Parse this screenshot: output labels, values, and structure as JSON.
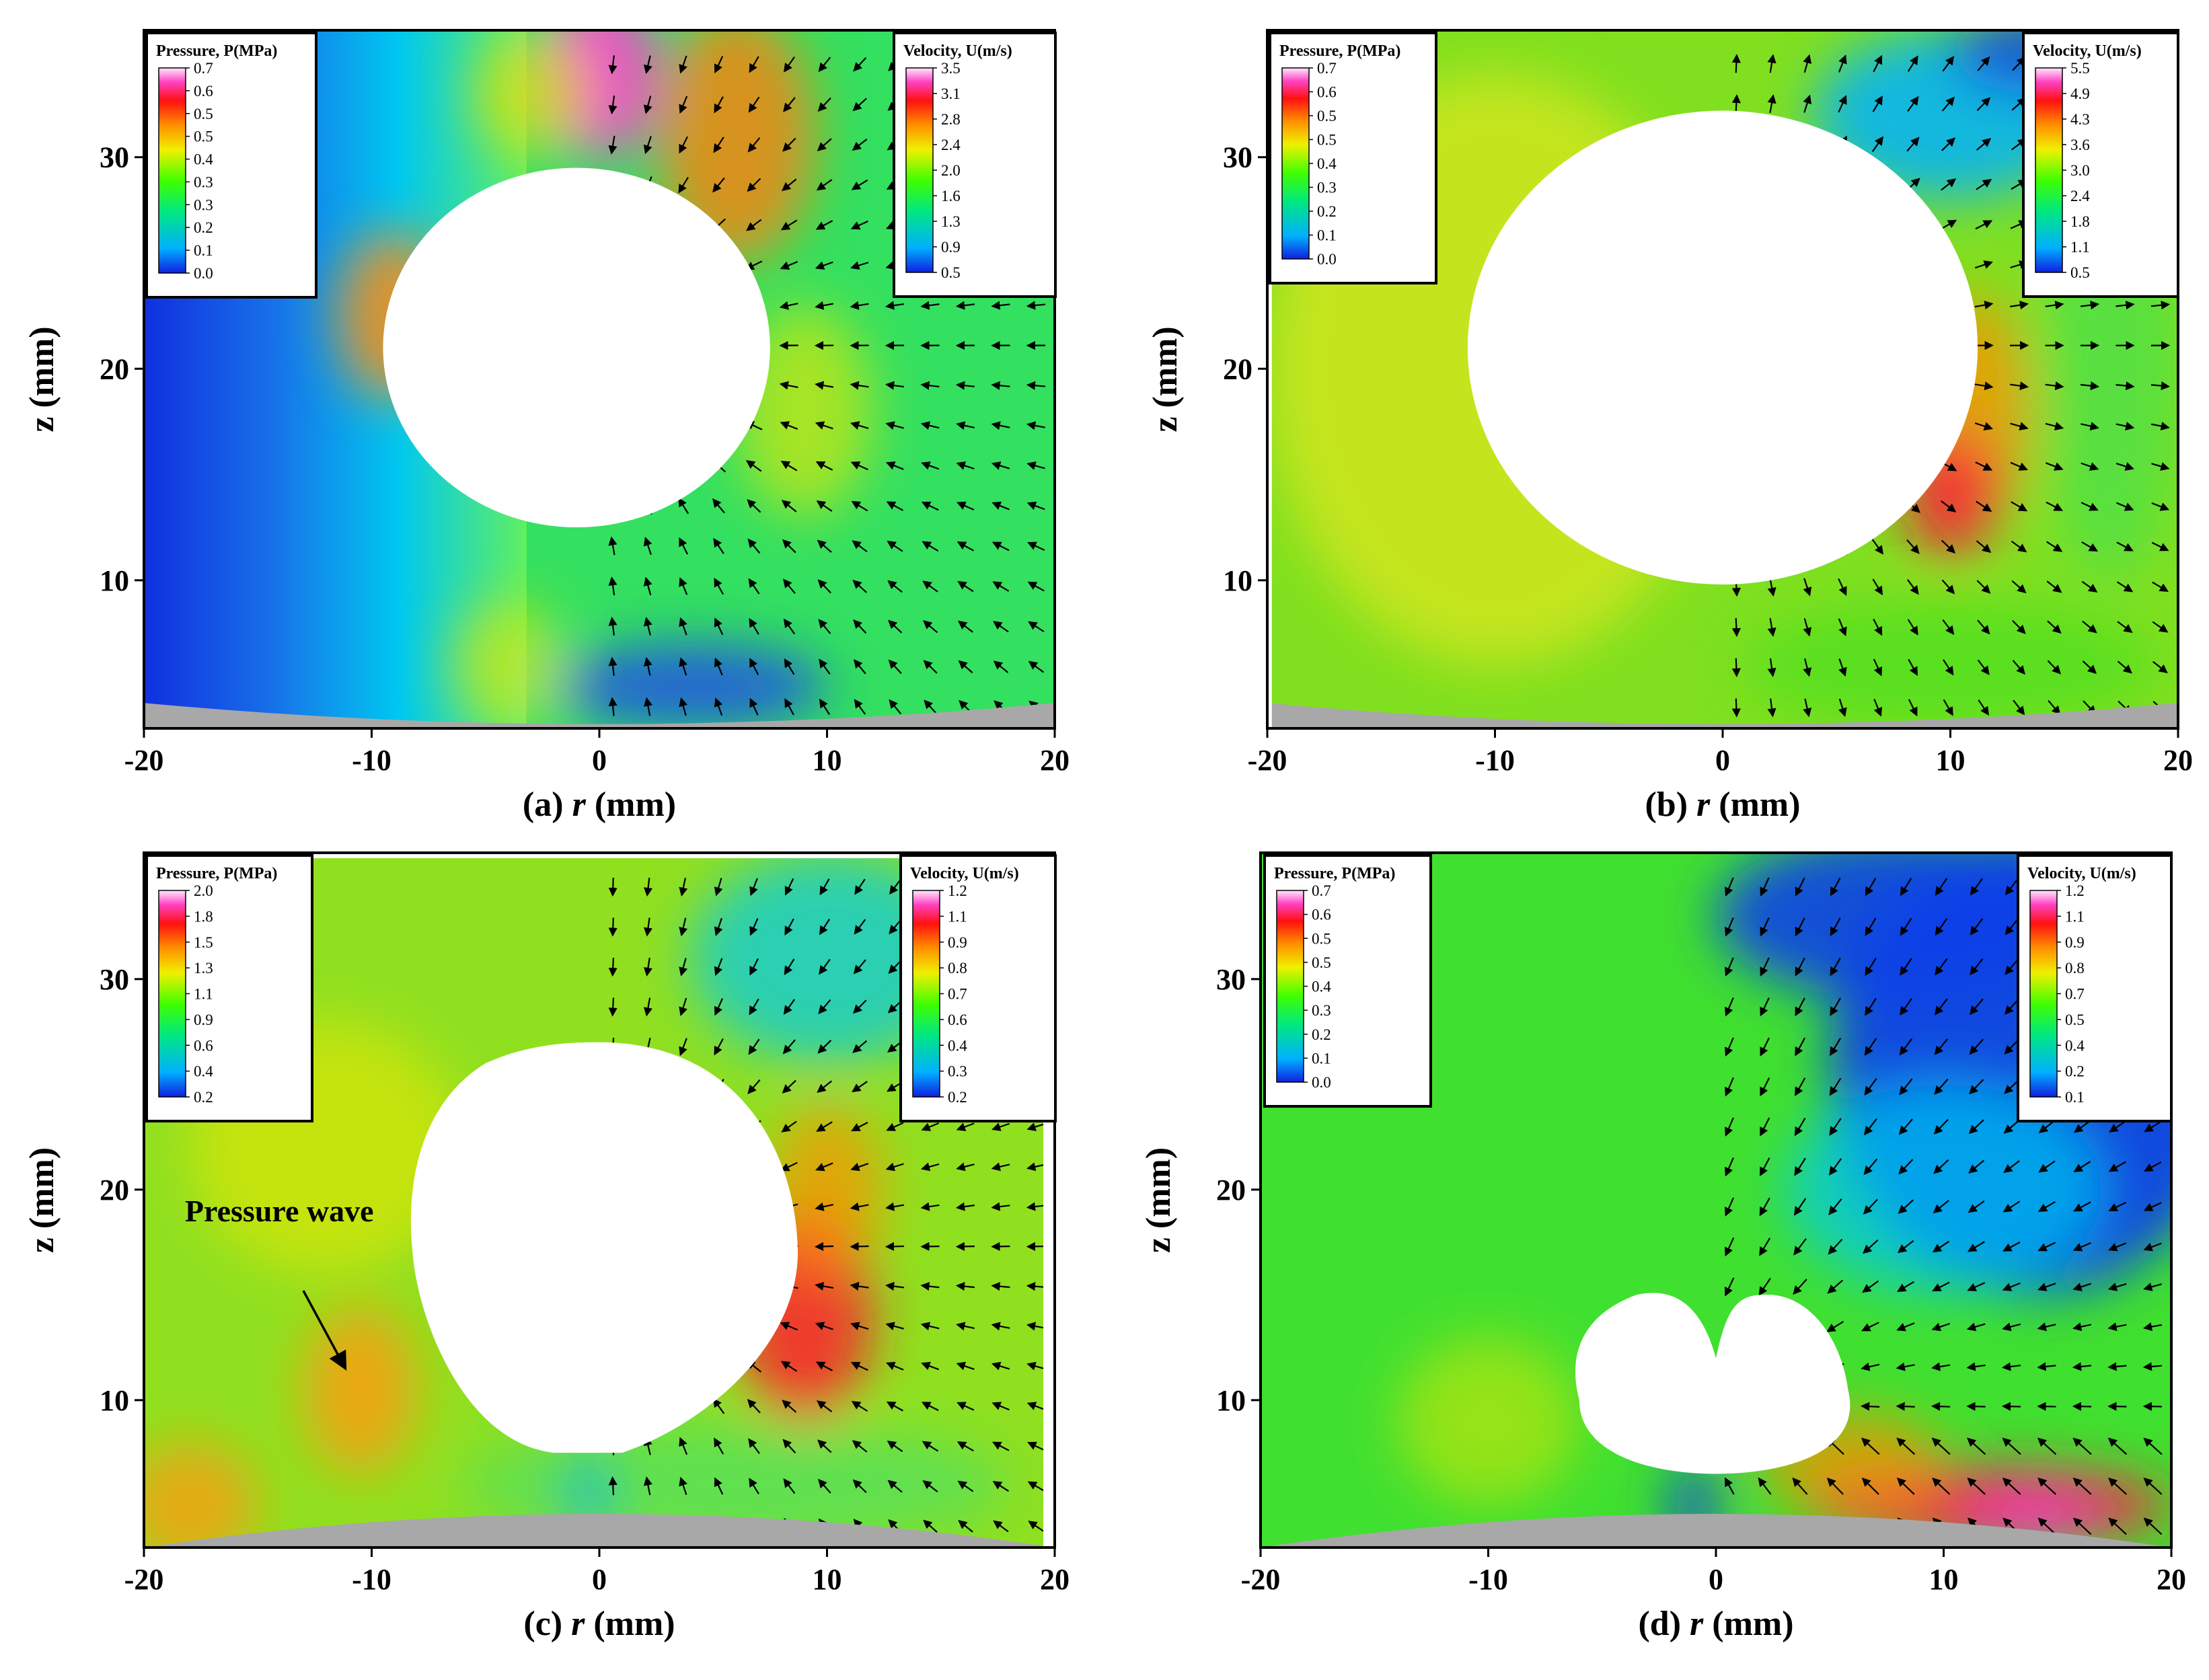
{
  "chart_data": [
    {
      "type": "heatmap",
      "panel": "a",
      "caption_prefix": "(a)",
      "xlabel": "r (mm)",
      "ylabel": "z (mm)",
      "xlim": [
        -20,
        20
      ],
      "ylim": [
        3,
        36
      ],
      "xticks": [
        -20,
        -10,
        0,
        10,
        20
      ],
      "yticks": [
        10,
        20,
        30
      ],
      "bubble": {
        "shape": "sphere",
        "center": [
          -1,
          21
        ],
        "radius": 8.5
      },
      "pressure_colorbar": {
        "title": "Pressure, P(MPa)",
        "ticks": [
          "0.7",
          "0.6",
          "0.5",
          "0.5",
          "0.4",
          "0.3",
          "0.3",
          "0.2",
          "0.1",
          "0.0"
        ]
      },
      "velocity_colorbar": {
        "title": "Velocity, U(m/s)",
        "ticks": [
          "3.5",
          "3.1",
          "2.8",
          "2.4",
          "2.0",
          "1.6",
          "1.3",
          "0.9",
          "0.5"
        ]
      },
      "annotation": ""
    },
    {
      "type": "heatmap",
      "panel": "b",
      "caption_prefix": "(b)",
      "xlabel": "r (mm)",
      "ylabel": "z (mm)",
      "xlim": [
        -20,
        20
      ],
      "ylim": [
        3,
        36
      ],
      "xticks": [
        -20,
        -10,
        0,
        10,
        20
      ],
      "yticks": [
        10,
        20,
        30
      ],
      "bubble": {
        "shape": "sphere",
        "center": [
          0,
          21
        ],
        "radius": 11.2
      },
      "pressure_colorbar": {
        "title": "Pressure, P(MPa)",
        "ticks": [
          "0.7",
          "0.6",
          "0.5",
          "0.5",
          "0.4",
          "0.3",
          "0.2",
          "0.1",
          "0.0"
        ]
      },
      "velocity_colorbar": {
        "title": "Velocity, U(m/s)",
        "ticks": [
          "5.5",
          "4.9",
          "4.3",
          "3.6",
          "3.0",
          "2.4",
          "1.8",
          "1.1",
          "0.5"
        ]
      },
      "annotation": ""
    },
    {
      "type": "heatmap",
      "panel": "c",
      "caption_prefix": "(c)",
      "xlabel": "r (mm)",
      "ylabel": "z (mm)",
      "xlim": [
        -20,
        20
      ],
      "ylim": [
        3,
        36
      ],
      "xticks": [
        -20,
        -10,
        0,
        10,
        20
      ],
      "yticks": [
        10,
        20,
        30
      ],
      "bubble": {
        "shape": "deformed",
        "center": [
          0,
          17
        ],
        "z_range": [
          7.5,
          27
        ]
      },
      "pressure_colorbar": {
        "title": "Pressure, P(MPa)",
        "ticks": [
          "2.0",
          "1.8",
          "1.5",
          "1.3",
          "1.1",
          "0.9",
          "0.6",
          "0.4",
          "0.2"
        ]
      },
      "velocity_colorbar": {
        "title": "Velocity, U(m/s)",
        "ticks": [
          "1.2",
          "1.1",
          "0.9",
          "0.8",
          "0.7",
          "0.6",
          "0.4",
          "0.3",
          "0.2"
        ]
      },
      "annotation": "Pressure wave"
    },
    {
      "type": "heatmap",
      "panel": "d",
      "caption_prefix": "(d)",
      "xlabel": "r (mm)",
      "ylabel": "z (mm)",
      "xlim": [
        -20,
        20
      ],
      "ylim": [
        3,
        36
      ],
      "xticks": [
        -20,
        -10,
        0,
        10,
        20
      ],
      "yticks": [
        10,
        20,
        30
      ],
      "bubble": {
        "shape": "toroidal",
        "center": [
          0,
          10
        ],
        "z_range": [
          6.5,
          15
        ]
      },
      "pressure_colorbar": {
        "title": "Pressure, P(MPa)",
        "ticks": [
          "0.7",
          "0.6",
          "0.5",
          "0.5",
          "0.4",
          "0.3",
          "0.2",
          "0.1",
          "0.0"
        ]
      },
      "velocity_colorbar": {
        "title": "Velocity, U(m/s)",
        "ticks": [
          "1.2",
          "1.1",
          "0.9",
          "0.8",
          "0.7",
          "0.5",
          "0.4",
          "0.2",
          "0.1"
        ]
      },
      "annotation": ""
    }
  ]
}
